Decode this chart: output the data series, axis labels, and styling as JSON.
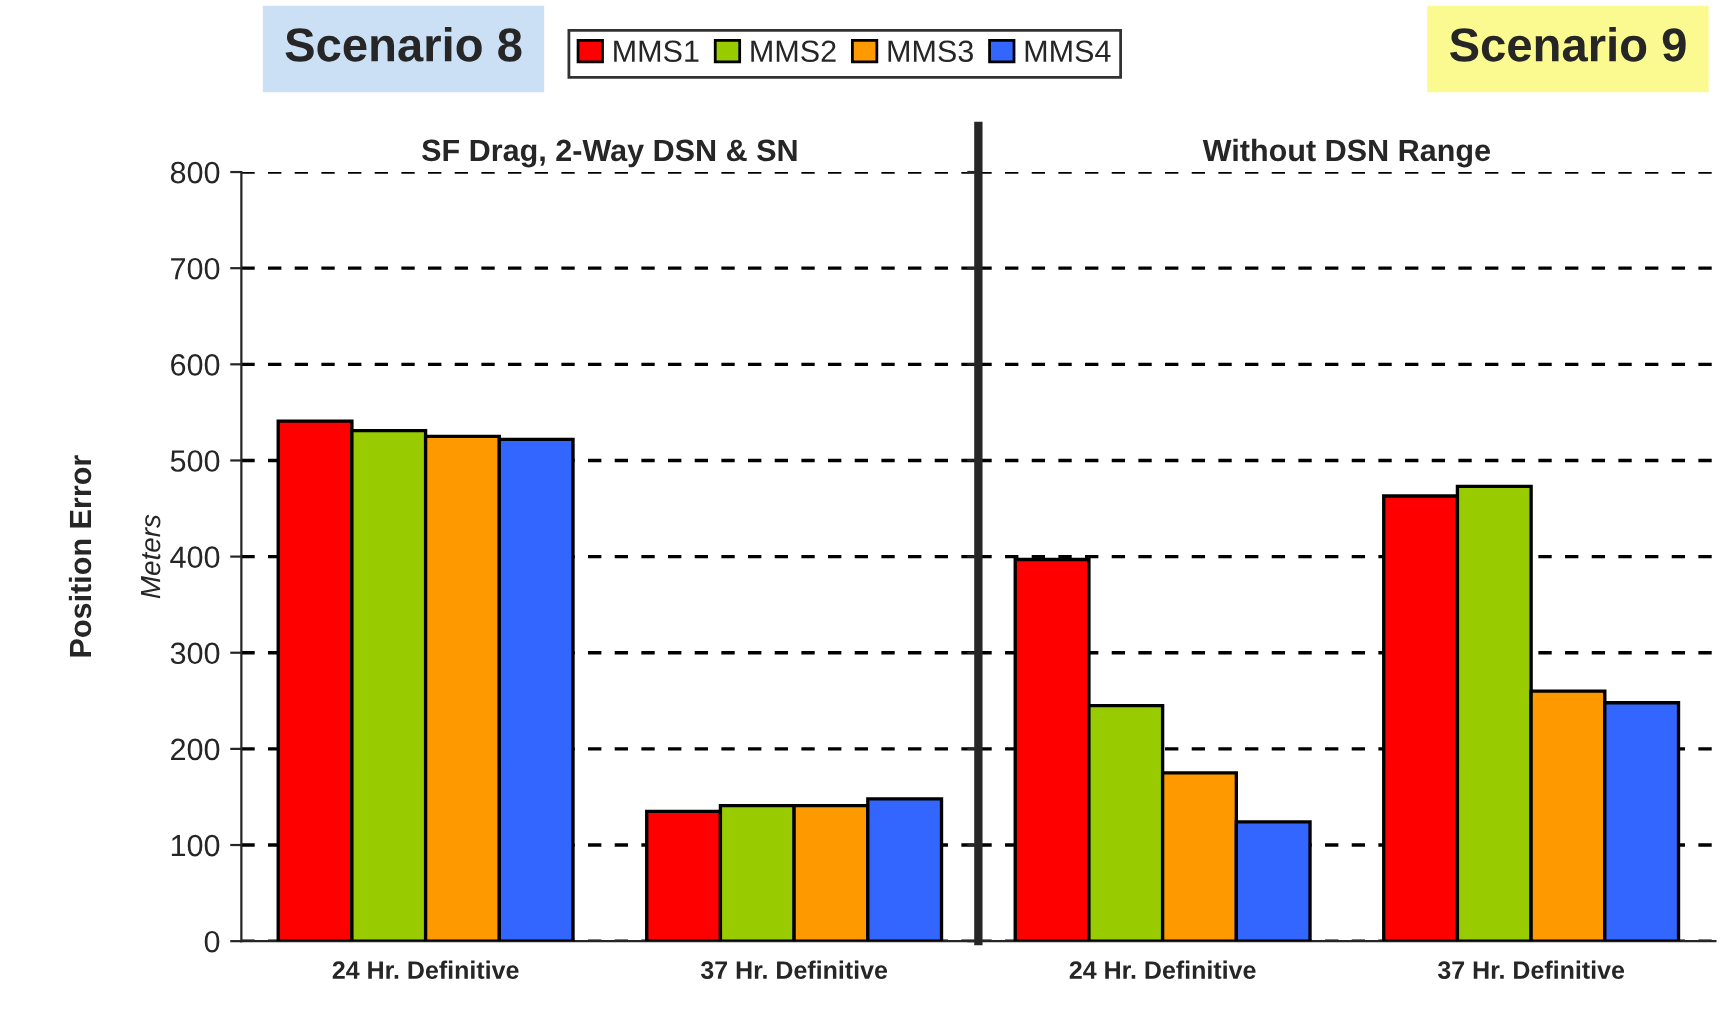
{
  "chart_data": [
    {
      "type": "bar",
      "title": "Scenario 8",
      "subtitle": "SF Drag, 2-Way DSN & SN",
      "ylabel": "Position Error\nMeters",
      "categories": [
        "24 Hr. Definitive",
        "37 Hr. Definitive"
      ],
      "series": [
        {
          "name": "MMS1",
          "color": "#ff0000",
          "values": [
            541,
            135
          ]
        },
        {
          "name": "MMS2",
          "color": "#99cc00",
          "values": [
            531,
            141
          ]
        },
        {
          "name": "MMS3",
          "color": "#ff9900",
          "values": [
            525,
            141
          ]
        },
        {
          "name": "MMS4",
          "color": "#3366ff",
          "values": [
            522,
            148
          ]
        }
      ],
      "ylim": [
        0,
        800
      ],
      "yticks": [
        0,
        100,
        200,
        300,
        400,
        500,
        600,
        700,
        800
      ],
      "grid": "y",
      "legend": "top"
    },
    {
      "type": "bar",
      "title": "Scenario 9",
      "subtitle": "Without DSN Range",
      "categories": [
        "24 Hr. Definitive",
        "37 Hr. Definitive"
      ],
      "series": [
        {
          "color": "#ff0000",
          "values": [
            397,
            463
          ]
        },
        {
          "color": "#99cc00",
          "values": [
            245,
            473
          ]
        },
        {
          "color": "#ff9900",
          "values": [
            175,
            260
          ]
        },
        {
          "color": "#3366ff",
          "values": [
            124,
            248
          ]
        }
      ],
      "ylim": [
        0,
        800
      ],
      "yticks": [
        0,
        100,
        200,
        300,
        400,
        500,
        600,
        700,
        800
      ],
      "grid": "y",
      "tick_labels": "x"
    }
  ]
}
